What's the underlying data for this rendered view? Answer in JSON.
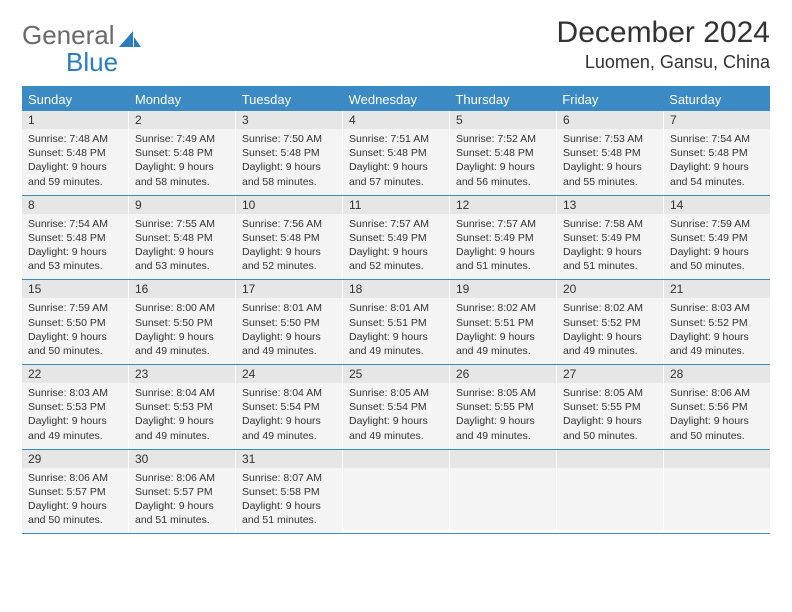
{
  "logo": {
    "text1": "General",
    "text2": "Blue"
  },
  "title": "December 2024",
  "location": "Luomen, Gansu, China",
  "colors": {
    "accent": "#3b8ac4",
    "header_bg": "#3b8ac4",
    "daynum_bg": "#e6e6e6",
    "daybody_bg": "#f4f4f4",
    "text": "#333333"
  },
  "day_headers": [
    "Sunday",
    "Monday",
    "Tuesday",
    "Wednesday",
    "Thursday",
    "Friday",
    "Saturday"
  ],
  "weeks": [
    [
      {
        "n": "1",
        "sr": "7:48 AM",
        "ss": "5:48 PM",
        "dl": "9 hours and 59 minutes."
      },
      {
        "n": "2",
        "sr": "7:49 AM",
        "ss": "5:48 PM",
        "dl": "9 hours and 58 minutes."
      },
      {
        "n": "3",
        "sr": "7:50 AM",
        "ss": "5:48 PM",
        "dl": "9 hours and 58 minutes."
      },
      {
        "n": "4",
        "sr": "7:51 AM",
        "ss": "5:48 PM",
        "dl": "9 hours and 57 minutes."
      },
      {
        "n": "5",
        "sr": "7:52 AM",
        "ss": "5:48 PM",
        "dl": "9 hours and 56 minutes."
      },
      {
        "n": "6",
        "sr": "7:53 AM",
        "ss": "5:48 PM",
        "dl": "9 hours and 55 minutes."
      },
      {
        "n": "7",
        "sr": "7:54 AM",
        "ss": "5:48 PM",
        "dl": "9 hours and 54 minutes."
      }
    ],
    [
      {
        "n": "8",
        "sr": "7:54 AM",
        "ss": "5:48 PM",
        "dl": "9 hours and 53 minutes."
      },
      {
        "n": "9",
        "sr": "7:55 AM",
        "ss": "5:48 PM",
        "dl": "9 hours and 53 minutes."
      },
      {
        "n": "10",
        "sr": "7:56 AM",
        "ss": "5:48 PM",
        "dl": "9 hours and 52 minutes."
      },
      {
        "n": "11",
        "sr": "7:57 AM",
        "ss": "5:49 PM",
        "dl": "9 hours and 52 minutes."
      },
      {
        "n": "12",
        "sr": "7:57 AM",
        "ss": "5:49 PM",
        "dl": "9 hours and 51 minutes."
      },
      {
        "n": "13",
        "sr": "7:58 AM",
        "ss": "5:49 PM",
        "dl": "9 hours and 51 minutes."
      },
      {
        "n": "14",
        "sr": "7:59 AM",
        "ss": "5:49 PM",
        "dl": "9 hours and 50 minutes."
      }
    ],
    [
      {
        "n": "15",
        "sr": "7:59 AM",
        "ss": "5:50 PM",
        "dl": "9 hours and 50 minutes."
      },
      {
        "n": "16",
        "sr": "8:00 AM",
        "ss": "5:50 PM",
        "dl": "9 hours and 49 minutes."
      },
      {
        "n": "17",
        "sr": "8:01 AM",
        "ss": "5:50 PM",
        "dl": "9 hours and 49 minutes."
      },
      {
        "n": "18",
        "sr": "8:01 AM",
        "ss": "5:51 PM",
        "dl": "9 hours and 49 minutes."
      },
      {
        "n": "19",
        "sr": "8:02 AM",
        "ss": "5:51 PM",
        "dl": "9 hours and 49 minutes."
      },
      {
        "n": "20",
        "sr": "8:02 AM",
        "ss": "5:52 PM",
        "dl": "9 hours and 49 minutes."
      },
      {
        "n": "21",
        "sr": "8:03 AM",
        "ss": "5:52 PM",
        "dl": "9 hours and 49 minutes."
      }
    ],
    [
      {
        "n": "22",
        "sr": "8:03 AM",
        "ss": "5:53 PM",
        "dl": "9 hours and 49 minutes."
      },
      {
        "n": "23",
        "sr": "8:04 AM",
        "ss": "5:53 PM",
        "dl": "9 hours and 49 minutes."
      },
      {
        "n": "24",
        "sr": "8:04 AM",
        "ss": "5:54 PM",
        "dl": "9 hours and 49 minutes."
      },
      {
        "n": "25",
        "sr": "8:05 AM",
        "ss": "5:54 PM",
        "dl": "9 hours and 49 minutes."
      },
      {
        "n": "26",
        "sr": "8:05 AM",
        "ss": "5:55 PM",
        "dl": "9 hours and 49 minutes."
      },
      {
        "n": "27",
        "sr": "8:05 AM",
        "ss": "5:55 PM",
        "dl": "9 hours and 50 minutes."
      },
      {
        "n": "28",
        "sr": "8:06 AM",
        "ss": "5:56 PM",
        "dl": "9 hours and 50 minutes."
      }
    ],
    [
      {
        "n": "29",
        "sr": "8:06 AM",
        "ss": "5:57 PM",
        "dl": "9 hours and 50 minutes."
      },
      {
        "n": "30",
        "sr": "8:06 AM",
        "ss": "5:57 PM",
        "dl": "9 hours and 51 minutes."
      },
      {
        "n": "31",
        "sr": "8:07 AM",
        "ss": "5:58 PM",
        "dl": "9 hours and 51 minutes."
      },
      {
        "empty": true
      },
      {
        "empty": true
      },
      {
        "empty": true
      },
      {
        "empty": true
      }
    ]
  ],
  "labels": {
    "sunrise": "Sunrise: ",
    "sunset": "Sunset: ",
    "daylight": "Daylight: "
  }
}
